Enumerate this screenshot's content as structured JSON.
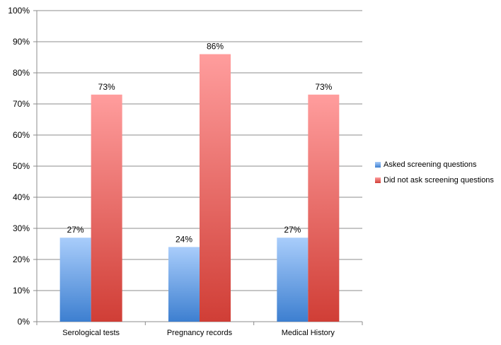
{
  "chart_data": {
    "type": "bar",
    "categories": [
      "Serological tests",
      "Pregnancy records",
      "Medical History"
    ],
    "series": [
      {
        "name": "Asked screening questions",
        "values": [
          27,
          24,
          27
        ],
        "labels": [
          "27%",
          "24%",
          "27%"
        ],
        "color_top": "#a9cdfb",
        "color_bottom": "#3d7fd0"
      },
      {
        "name": "Did not ask screening questions",
        "values": [
          73,
          86,
          73
        ],
        "labels": [
          "73%",
          "86%",
          "73%"
        ],
        "color_top": "#ff9d9d",
        "color_bottom": "#d03e36"
      }
    ],
    "y_ticks": [
      "0%",
      "10%",
      "20%",
      "30%",
      "40%",
      "50%",
      "60%",
      "70%",
      "80%",
      "90%",
      "100%"
    ],
    "ylim": [
      0,
      100
    ],
    "grid": true,
    "legend_position": "right",
    "title": "",
    "xlabel": "",
    "ylabel": ""
  }
}
